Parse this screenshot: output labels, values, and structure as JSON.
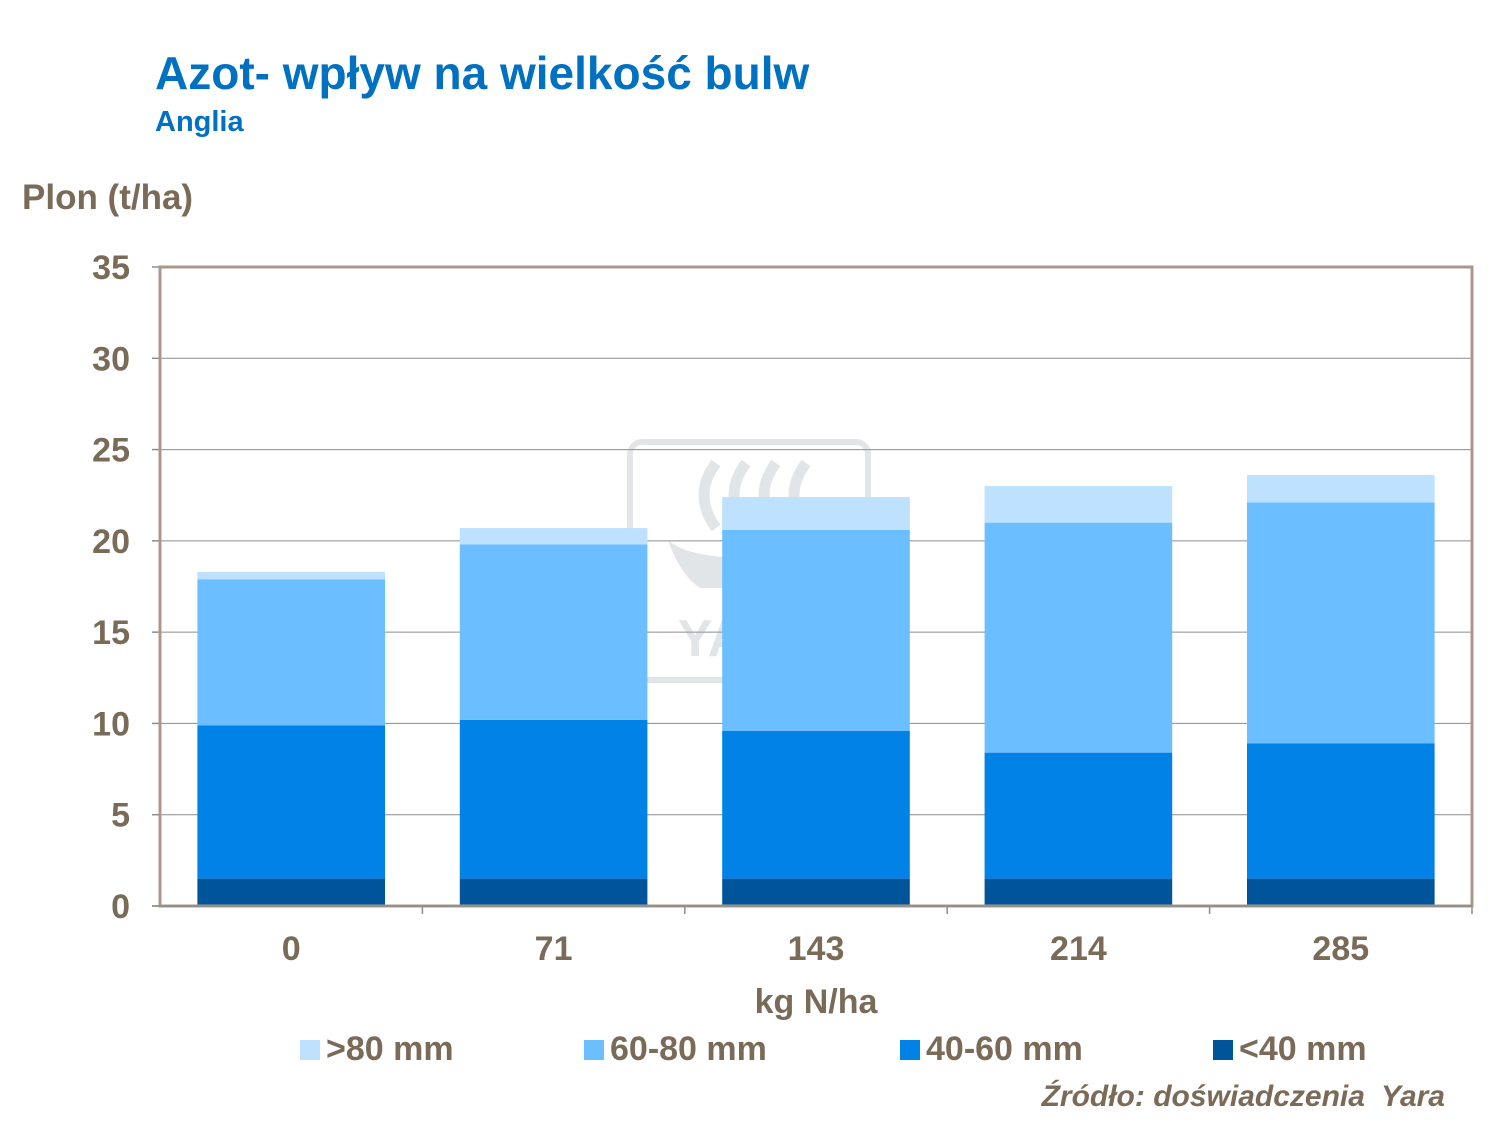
{
  "header": {
    "title": "Azot- wpływ na wielkość bulw",
    "subtitle": "Anglia"
  },
  "watermark": {
    "text": "YARA"
  },
  "footer": {
    "source": "Źródło: doświadczenia  Yara"
  },
  "chart_data": {
    "type": "bar",
    "stacked": true,
    "ylabel": "Plon (t/ha)",
    "xlabel": "kg N/ha",
    "ylim": [
      0,
      35
    ],
    "yticks": [
      "0",
      "5",
      "10",
      "15",
      "20",
      "25",
      "30",
      "35"
    ],
    "grid": true,
    "legend_position": "bottom",
    "categories": [
      "0",
      "71",
      "143",
      "214",
      "285"
    ],
    "series": [
      {
        "name": "<40 mm",
        "color": "#00559A",
        "values": [
          1.5,
          1.5,
          1.5,
          1.5,
          1.5
        ]
      },
      {
        "name": "40-60 mm",
        "color": "#0082E6",
        "values": [
          8.4,
          8.7,
          8.1,
          6.9,
          7.4
        ]
      },
      {
        "name": "60-80 mm",
        "color": "#6BBEFF",
        "values": [
          8.0,
          9.6,
          11.0,
          12.6,
          13.2
        ]
      },
      {
        "name": ">80 mm",
        "color": "#BDE1FF",
        "values": [
          0.4,
          0.9,
          1.8,
          2.0,
          1.5
        ]
      }
    ],
    "legend_order": [
      ">80 mm",
      "60-80 mm",
      "40-60 mm",
      "<40 mm"
    ]
  }
}
